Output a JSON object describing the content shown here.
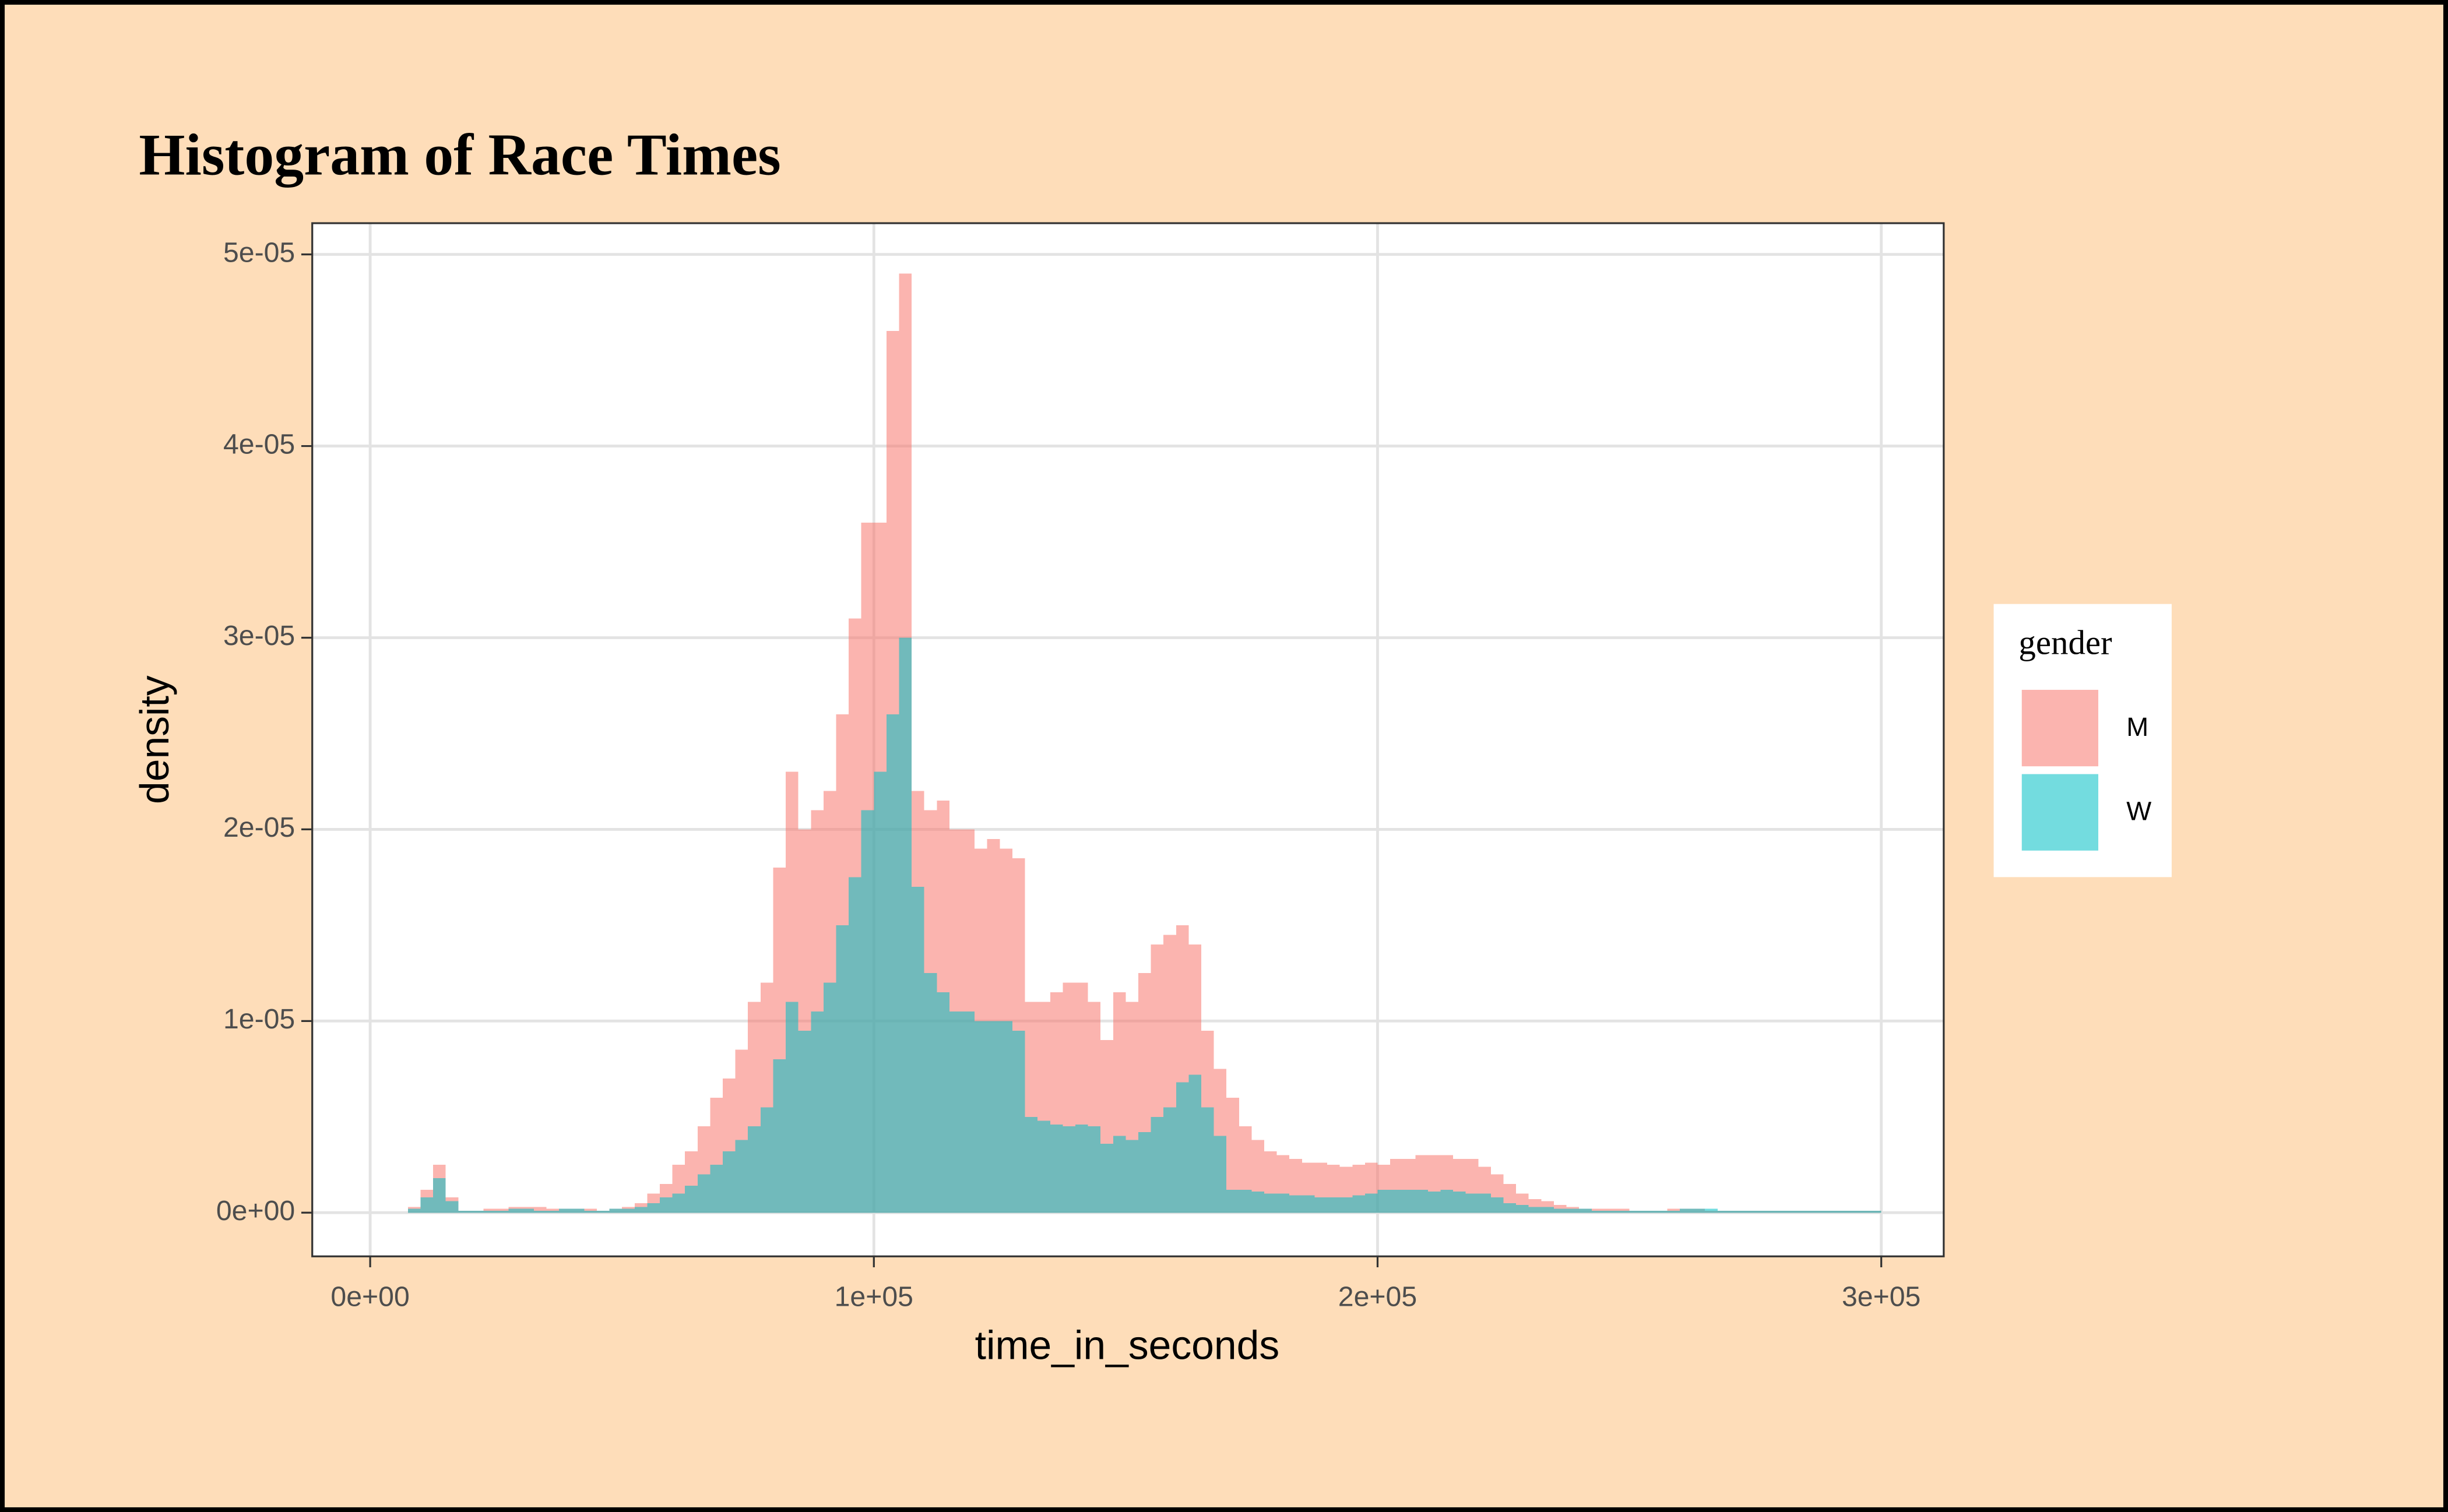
{
  "chart_data": {
    "type": "histogram",
    "title": "Histogram of Race Times",
    "x_label": "time_in_seconds",
    "y_label": "density",
    "legend_title": "gender",
    "legend_position": "right",
    "grid": true,
    "opacity": 0.55,
    "xlim": [
      -11500,
      312400
    ],
    "ylim": [
      -2.28e-06,
      5.163e-05
    ],
    "xticks": [
      {
        "value": 0,
        "label": "0e+00"
      },
      {
        "value": 100000,
        "label": "1e+05"
      },
      {
        "value": 200000,
        "label": "2e+05"
      },
      {
        "value": 300000,
        "label": "3e+05"
      }
    ],
    "yticks": [
      {
        "value": 0,
        "label": "0e+00"
      },
      {
        "value": 1e-05,
        "label": "1e-05"
      },
      {
        "value": 2e-05,
        "label": "2e-05"
      },
      {
        "value": 3e-05,
        "label": "3e-05"
      },
      {
        "value": 4e-05,
        "label": "4e-05"
      },
      {
        "value": 5e-05,
        "label": "5e-05"
      }
    ],
    "bins": [
      0,
      2500,
      5000,
      7500,
      10000,
      12500,
      15000,
      17500,
      20000,
      22500,
      25000,
      27500,
      30000,
      32500,
      35000,
      37500,
      40000,
      42500,
      45000,
      47500,
      50000,
      52500,
      55000,
      57500,
      60000,
      62500,
      65000,
      67500,
      70000,
      72500,
      75000,
      77500,
      80000,
      82500,
      85000,
      87500,
      90000,
      92500,
      95000,
      97500,
      100000,
      102500,
      105000,
      107500,
      110000,
      112500,
      115000,
      117500,
      120000,
      122500,
      125000,
      127500,
      130000,
      132500,
      135000,
      137500,
      140000,
      142500,
      145000,
      147500,
      150000,
      152500,
      155000,
      157500,
      160000,
      162500,
      165000,
      167500,
      170000,
      172500,
      175000,
      177500,
      180000,
      182500,
      185000,
      187500,
      190000,
      192500,
      195000,
      197500,
      200000,
      202500,
      205000,
      207500,
      210000,
      212500,
      215000,
      217500,
      220000,
      222500,
      225000,
      227500,
      230000,
      232500,
      235000,
      237500,
      240000,
      242500,
      245000,
      247500,
      250000,
      252500,
      255000,
      257500,
      260000,
      262500,
      265000,
      267500,
      270000,
      272500,
      275000,
      277500,
      280000,
      282500,
      285000,
      287500,
      290000,
      292500,
      295000,
      297500,
      300000
    ],
    "series": [
      {
        "name": "M",
        "color": "#F8766D",
        "values": [
          0,
          0,
          0,
          3e-07,
          1.2e-06,
          2.5e-06,
          8e-07,
          1e-07,
          1e-07,
          2e-07,
          2e-07,
          3e-07,
          3e-07,
          3e-07,
          2e-07,
          2e-07,
          2e-07,
          2e-07,
          1e-07,
          2e-07,
          3e-07,
          5e-07,
          1e-06,
          1.5e-06,
          2.5e-06,
          3.2e-06,
          4.5e-06,
          6e-06,
          7e-06,
          8.5e-06,
          1.1e-05,
          1.2e-05,
          1.8e-05,
          2.3e-05,
          2e-05,
          2.1e-05,
          2.2e-05,
          2.6e-05,
          3.1e-05,
          3.6e-05,
          3.6e-05,
          4.6e-05,
          4.9e-05,
          2.2e-05,
          2.1e-05,
          2.15e-05,
          2e-05,
          2e-05,
          1.9e-05,
          1.95e-05,
          1.9e-05,
          1.85e-05,
          1.1e-05,
          1.1e-05,
          1.15e-05,
          1.2e-05,
          1.2e-05,
          1.1e-05,
          9e-06,
          1.15e-05,
          1.1e-05,
          1.25e-05,
          1.4e-05,
          1.45e-05,
          1.5e-05,
          1.4e-05,
          9.5e-06,
          7.5e-06,
          6e-06,
          4.5e-06,
          3.8e-06,
          3.2e-06,
          3e-06,
          2.8e-06,
          2.6e-06,
          2.6e-06,
          2.5e-06,
          2.4e-06,
          2.5e-06,
          2.6e-06,
          2.5e-06,
          2.8e-06,
          2.8e-06,
          3e-06,
          3e-06,
          3e-06,
          2.8e-06,
          2.8e-06,
          2.4e-06,
          2e-06,
          1.5e-06,
          1e-06,
          7e-07,
          6e-07,
          4e-07,
          3e-07,
          2e-07,
          2e-07,
          2e-07,
          2e-07,
          1e-07,
          1e-07,
          1e-07,
          2e-07,
          2e-07,
          2e-07,
          1e-07,
          1e-07,
          1e-07,
          1e-07,
          1e-07,
          1e-07,
          1e-07,
          1e-07,
          1e-07,
          1e-07,
          1e-07,
          1e-07,
          1e-07,
          1e-07
        ]
      },
      {
        "name": "W",
        "color": "#00BFC4",
        "values": [
          0,
          0,
          0,
          2e-07,
          8e-07,
          1.8e-06,
          6e-07,
          1e-07,
          1e-07,
          1e-07,
          1e-07,
          2e-07,
          2e-07,
          1e-07,
          1e-07,
          2e-07,
          2e-07,
          1e-07,
          1e-07,
          2e-07,
          2e-07,
          3e-07,
          5e-07,
          8e-07,
          1e-06,
          1.4e-06,
          2e-06,
          2.5e-06,
          3.2e-06,
          3.8e-06,
          4.5e-06,
          5.5e-06,
          8e-06,
          1.1e-05,
          9.5e-06,
          1.05e-05,
          1.2e-05,
          1.5e-05,
          1.75e-05,
          2.1e-05,
          2.3e-05,
          2.6e-05,
          3e-05,
          1.7e-05,
          1.25e-05,
          1.15e-05,
          1.05e-05,
          1.05e-05,
          1e-05,
          1e-05,
          1e-05,
          9.5e-06,
          5e-06,
          4.8e-06,
          4.6e-06,
          4.5e-06,
          4.6e-06,
          4.5e-06,
          3.6e-06,
          4e-06,
          3.8e-06,
          4.2e-06,
          5e-06,
          5.5e-06,
          6.8e-06,
          7.2e-06,
          5.5e-06,
          4e-06,
          1.2e-06,
          1.2e-06,
          1.1e-06,
          1e-06,
          1e-06,
          9e-07,
          9e-07,
          8e-07,
          8e-07,
          8e-07,
          9e-07,
          1e-06,
          1.2e-06,
          1.2e-06,
          1.2e-06,
          1.2e-06,
          1.1e-06,
          1.2e-06,
          1.1e-06,
          1e-06,
          1e-06,
          8e-07,
          5e-07,
          4e-07,
          3e-07,
          3e-07,
          2e-07,
          2e-07,
          2e-07,
          1e-07,
          1e-07,
          1e-07,
          1e-07,
          1e-07,
          1e-07,
          1e-07,
          2e-07,
          2e-07,
          2e-07,
          1e-07,
          1e-07,
          1e-07,
          1e-07,
          1e-07,
          1e-07,
          1e-07,
          1e-07,
          1e-07,
          1e-07,
          1e-07,
          1e-07,
          1e-07
        ]
      }
    ]
  }
}
